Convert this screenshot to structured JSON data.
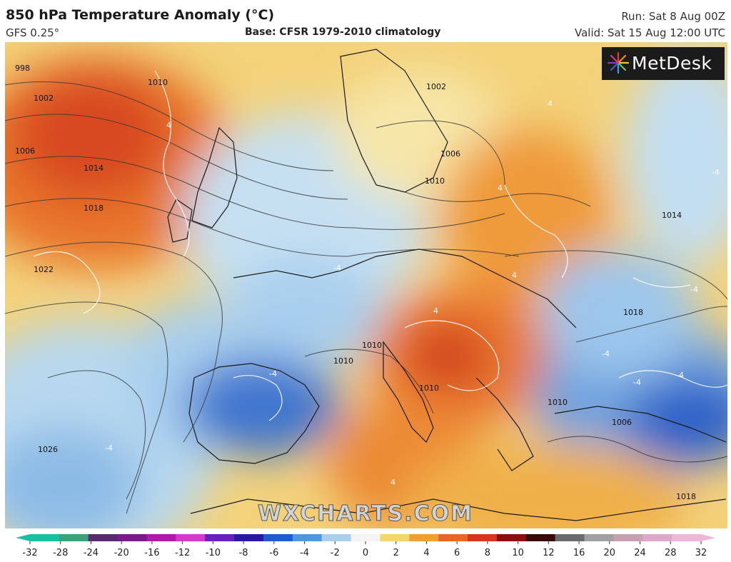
{
  "header": {
    "title": "850 hPa Temperature Anomaly (°C)",
    "model": "GFS 0.25°",
    "base": "Base: CFSR 1979-2010 climatology",
    "run": "Run: Sat 8 Aug 00Z",
    "valid": "Valid: Sat 15 Aug 12:00 UTC"
  },
  "branding": {
    "logo_text": "MetDesk",
    "watermark": "WXCHARTS.COM"
  },
  "isobars": {
    "labels": [
      "998",
      "1002",
      "1006",
      "1010",
      "1014",
      "1018",
      "1022",
      "1026",
      "1002",
      "1006",
      "1010",
      "1014",
      "1018",
      "1010",
      "1010",
      "1010",
      "1006",
      "1010",
      "1018"
    ]
  },
  "anomaly_labels": [
    "4",
    "4",
    "4",
    "4",
    "4",
    "4",
    "-4",
    "-4",
    "-4",
    "-4",
    "-4",
    "-4",
    "-4",
    "-4"
  ],
  "colorbar": {
    "ticks": [
      "-32",
      "-28",
      "-24",
      "-20",
      "-16",
      "-12",
      "-10",
      "-8",
      "-6",
      "-4",
      "-2",
      "0",
      "2",
      "4",
      "6",
      "8",
      "10",
      "12",
      "16",
      "20",
      "24",
      "28",
      "32"
    ],
    "colors": [
      "#17c0a0",
      "#3aa37a",
      "#5a2a70",
      "#7b1a8a",
      "#b01aa8",
      "#d23bc8",
      "#6a1fbf",
      "#2a1aa0",
      "#1f5cd0",
      "#4e98e0",
      "#a8d0ee",
      "#f4f4f4",
      "#f4d66a",
      "#f0a030",
      "#e8662a",
      "#d8341e",
      "#8a0f10",
      "#3a0a0a",
      "#6a6a6a",
      "#a0a0a0",
      "#c9a0b0",
      "#e0a8c8",
      "#f0b6d6"
    ]
  }
}
